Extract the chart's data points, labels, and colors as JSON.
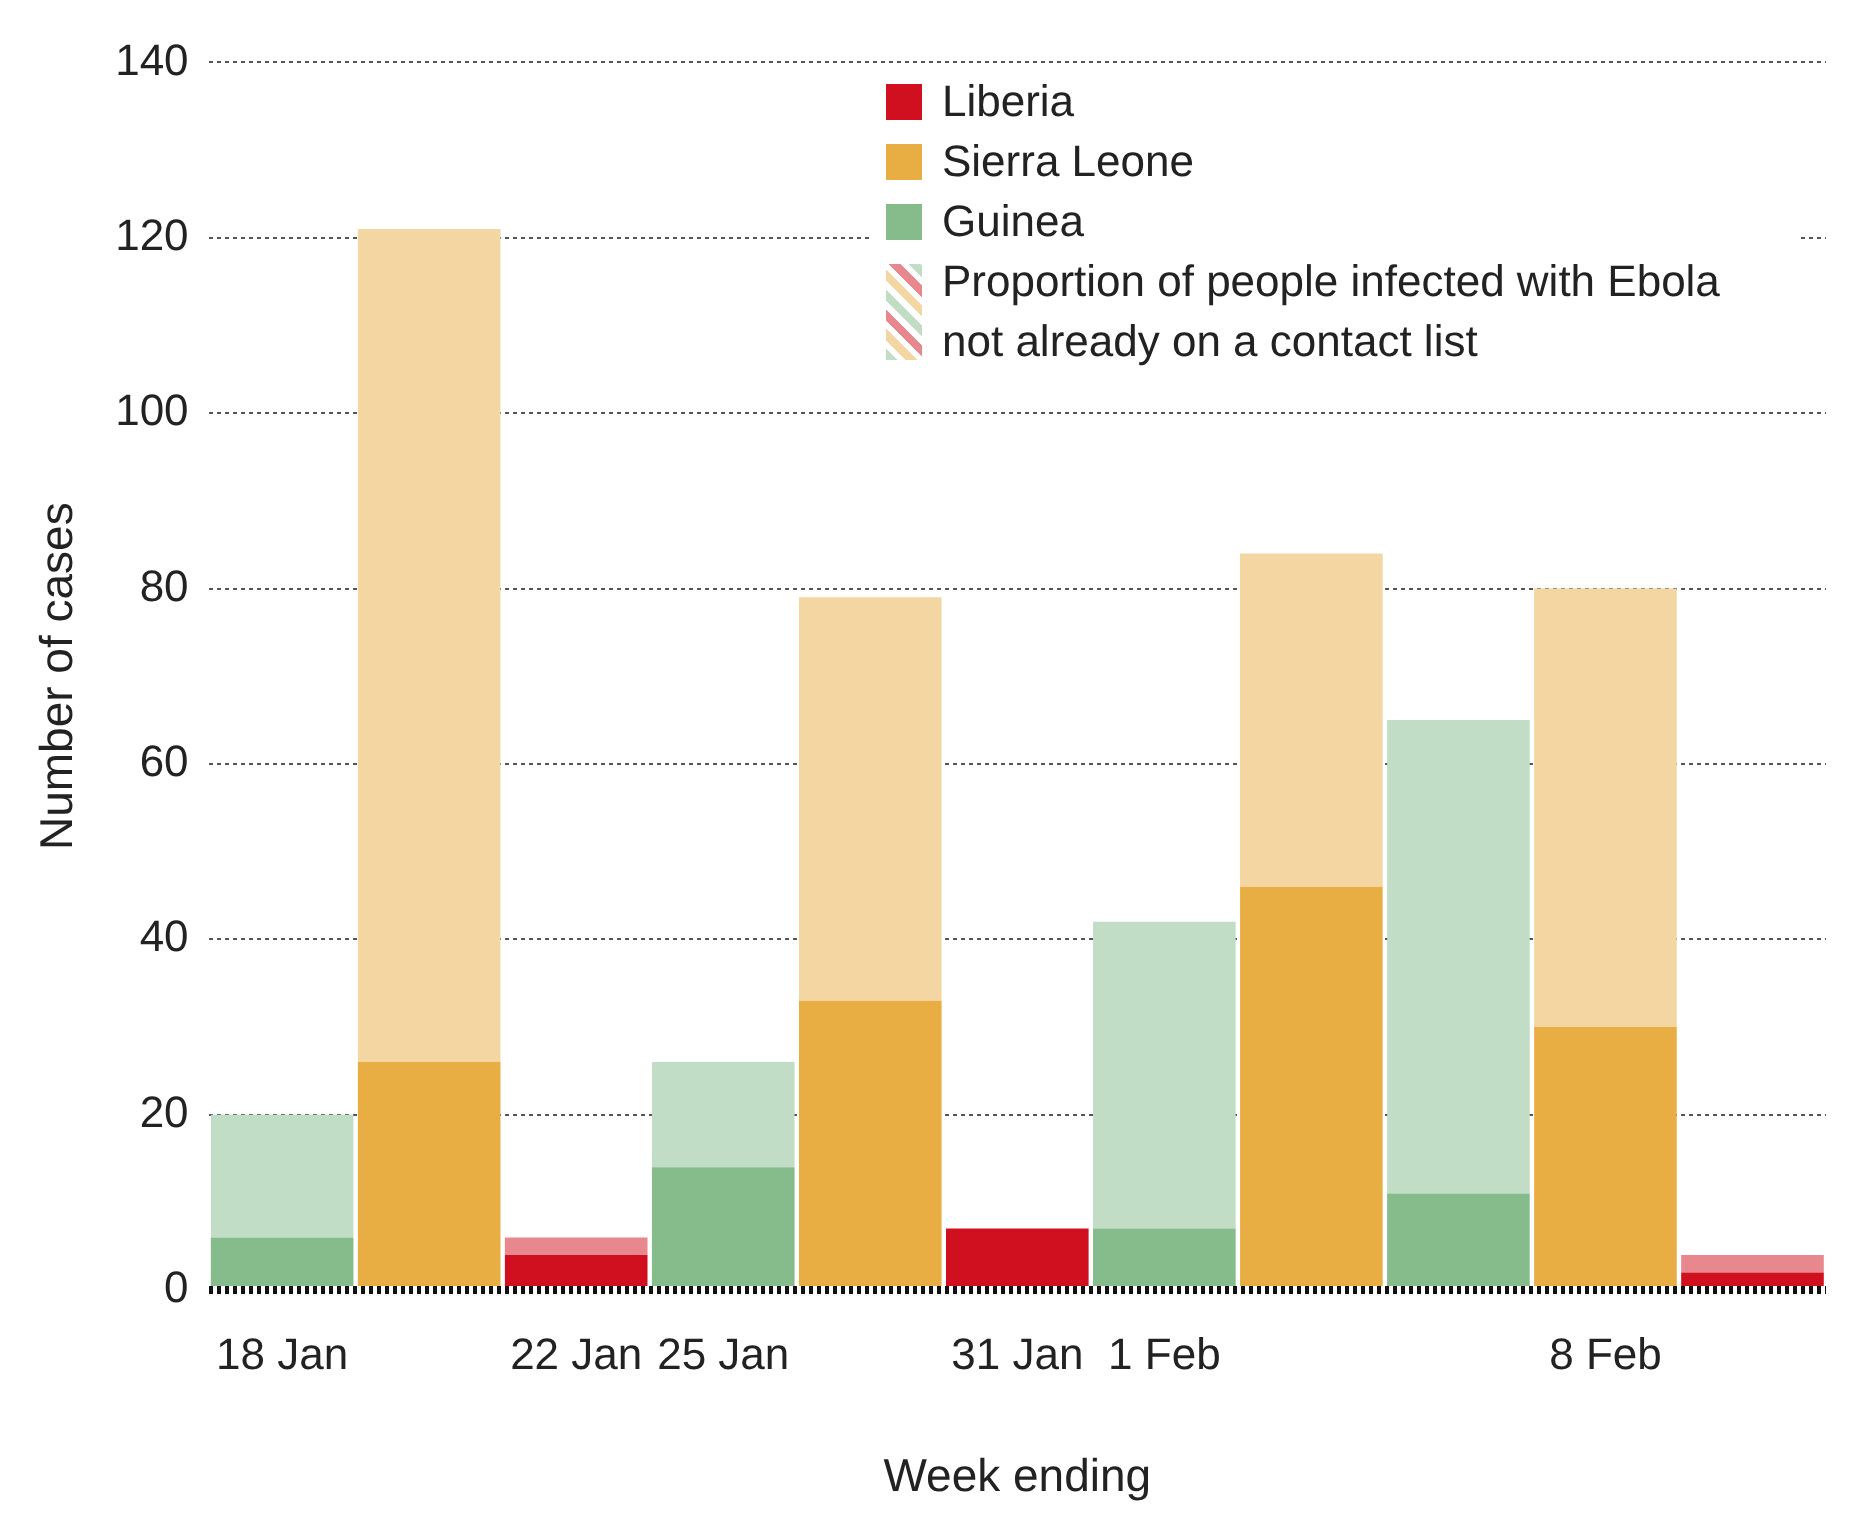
{
  "chart_data": {
    "type": "bar",
    "xlabel": "Week ending",
    "ylabel": "Number of cases",
    "categories": [
      "18 Jan",
      null,
      "22 Jan",
      "25 Jan",
      null,
      "31 Jan",
      "1 Feb",
      null,
      null,
      "8 Feb",
      null
    ],
    "stacked": true,
    "ylim": [
      0,
      140
    ],
    "yticks": [
      0,
      20,
      40,
      60,
      80,
      100,
      120,
      140
    ],
    "grid": "y",
    "legend": "top right",
    "series": [
      {
        "name": "Guinea",
        "color": "#86bb8c",
        "values": [
          6,
          null,
          null,
          14,
          null,
          null,
          7,
          null,
          11,
          null,
          null
        ]
      },
      {
        "name": "Sierra Leone",
        "color": "#e8ae44",
        "values": [
          null,
          26,
          null,
          null,
          33,
          null,
          null,
          46,
          null,
          30,
          null
        ]
      },
      {
        "name": "Liberia",
        "color": "#d0101e",
        "values": [
          null,
          null,
          4,
          null,
          null,
          7,
          null,
          null,
          null,
          null,
          2
        ]
      },
      {
        "name": "Proportion of people infected with Ebola not already on a contact list",
        "colors": [
          "#c2ddc5",
          "#f3d6a1",
          "#e8878e",
          "#c2ddc5",
          "#f3d6a1",
          "#e8878e",
          "#c2ddc5",
          "#f3d6a1",
          "#c2ddc5",
          "#f3d6a1",
          "#e8878e"
        ],
        "values": [
          14,
          95,
          2,
          12,
          46,
          null,
          35,
          38,
          54,
          50,
          2
        ]
      }
    ]
  }
}
